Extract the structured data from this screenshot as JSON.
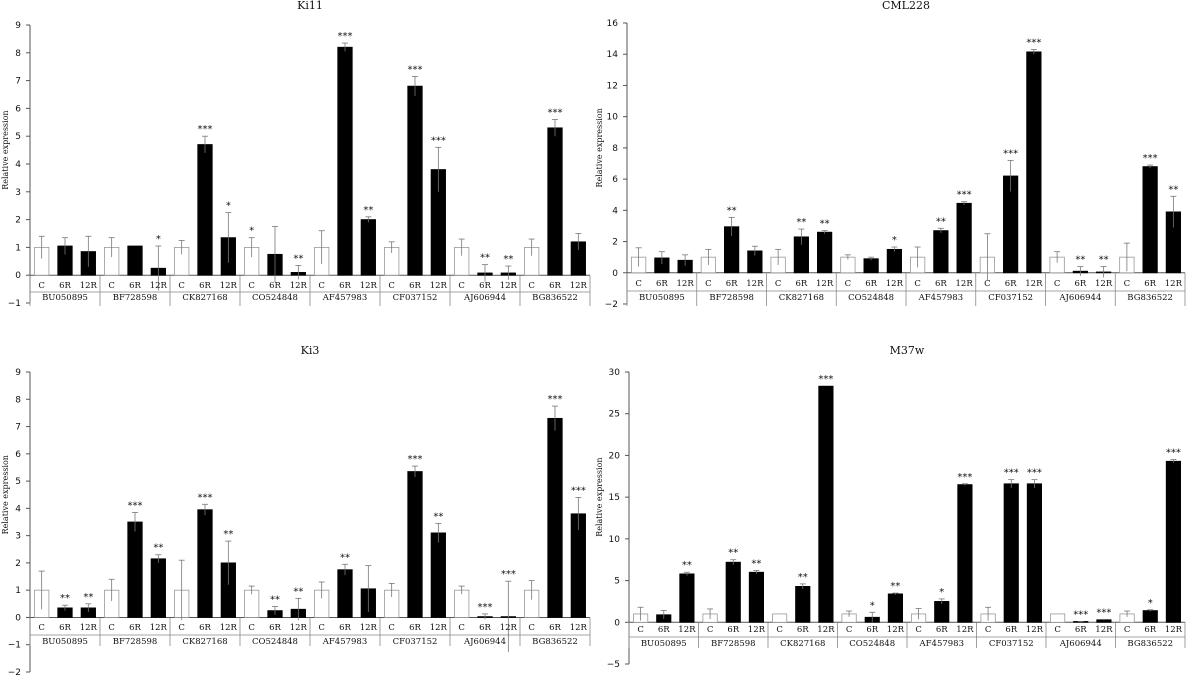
{
  "chart_data": [
    {
      "type": "bar",
      "title": "Ki11",
      "ylabel": "Relative expression",
      "ylim": [
        -1,
        9
      ],
      "yticks": [
        -1,
        0,
        1,
        2,
        3,
        4,
        5,
        6,
        7,
        8,
        9
      ],
      "groups": [
        "BU050895",
        "BF728598",
        "CK827168",
        "CO524848",
        "AF457983",
        "CF037152",
        "AJ606944",
        "BG836522"
      ],
      "treatments": [
        "C",
        "6R",
        "12R"
      ],
      "values": [
        [
          1.0,
          1.05,
          0.85
        ],
        [
          1.0,
          1.05,
          0.25
        ],
        [
          1.0,
          4.7,
          1.35
        ],
        [
          1.0,
          0.75,
          0.1
        ],
        [
          1.0,
          8.2,
          2.0
        ],
        [
          1.0,
          6.8,
          3.8
        ],
        [
          1.0,
          0.08,
          0.08
        ],
        [
          1.0,
          5.3,
          1.2
        ]
      ],
      "errors": [
        [
          0.4,
          0.3,
          0.55
        ],
        [
          0.35,
          0.0,
          0.8
        ],
        [
          0.25,
          0.3,
          0.9
        ],
        [
          0.35,
          1.0,
          0.25
        ],
        [
          0.6,
          0.15,
          0.1
        ],
        [
          0.2,
          0.35,
          0.8
        ],
        [
          0.3,
          0.3,
          0.25
        ],
        [
          0.3,
          0.3,
          0.3
        ]
      ],
      "significance": [
        [
          "",
          "",
          ""
        ],
        [
          "",
          "",
          "*"
        ],
        [
          "",
          "***",
          "*"
        ],
        [
          "*",
          "",
          "**"
        ],
        [
          "",
          "***",
          "**"
        ],
        [
          "",
          "***",
          "***"
        ],
        [
          "",
          "**",
          "**"
        ],
        [
          "",
          "***",
          ""
        ]
      ],
      "grid": false,
      "legend": "none"
    },
    {
      "type": "bar",
      "title": "CML228",
      "ylabel": "Relative expression",
      "ylim": [
        -2,
        16
      ],
      "yticks": [
        -2,
        0,
        2,
        4,
        6,
        8,
        10,
        12,
        14,
        16
      ],
      "groups": [
        "BU050895",
        "BF728598",
        "CK827168",
        "CO524848",
        "AF457983",
        "CF037152",
        "AJ606944",
        "BG836522"
      ],
      "treatments": [
        "C",
        "6R",
        "12R"
      ],
      "values": [
        [
          1.0,
          0.95,
          0.8
        ],
        [
          1.0,
          2.95,
          1.4
        ],
        [
          1.0,
          2.3,
          2.6
        ],
        [
          1.0,
          0.9,
          1.5
        ],
        [
          1.0,
          2.7,
          4.45
        ],
        [
          1.0,
          6.2,
          14.15
        ],
        [
          1.0,
          0.1,
          0.05
        ],
        [
          1.0,
          6.8,
          3.9
        ]
      ],
      "errors": [
        [
          0.6,
          0.4,
          0.35
        ],
        [
          0.5,
          0.6,
          0.3
        ],
        [
          0.5,
          0.5,
          0.1
        ],
        [
          0.15,
          0.1,
          0.15
        ],
        [
          0.65,
          0.15,
          0.1
        ],
        [
          1.5,
          1.0,
          0.15
        ],
        [
          0.35,
          0.3,
          0.35
        ],
        [
          0.9,
          0.1,
          1.0
        ]
      ],
      "significance": [
        [
          "",
          "",
          ""
        ],
        [
          "",
          "**",
          ""
        ],
        [
          "",
          "**",
          "**"
        ],
        [
          "",
          "",
          "*"
        ],
        [
          "",
          "**",
          "***"
        ],
        [
          "",
          "***",
          "***"
        ],
        [
          "",
          "**",
          "**"
        ],
        [
          "",
          "***",
          "**"
        ]
      ],
      "grid": false,
      "legend": "none"
    },
    {
      "type": "bar",
      "title": "Ki3",
      "ylabel": "Relative expression",
      "ylim": [
        -2,
        9
      ],
      "yticks": [
        -2,
        -1,
        0,
        1,
        2,
        3,
        4,
        5,
        6,
        7,
        8,
        9
      ],
      "groups": [
        "BU050895",
        "BF728598",
        "CK827168",
        "CO524848",
        "AF457983",
        "CF037152",
        "AJ606944",
        "BG836522"
      ],
      "treatments": [
        "C",
        "6R",
        "12R"
      ],
      "values": [
        [
          1.0,
          0.35,
          0.35
        ],
        [
          1.0,
          3.5,
          2.15
        ],
        [
          1.0,
          3.95,
          2.0
        ],
        [
          1.0,
          0.25,
          0.3
        ],
        [
          1.0,
          1.75,
          1.05
        ],
        [
          1.0,
          5.35,
          3.1
        ],
        [
          1.0,
          0.03,
          0.03
        ],
        [
          1.0,
          7.3,
          3.8
        ]
      ],
      "errors": [
        [
          0.7,
          0.1,
          0.15
        ],
        [
          0.4,
          0.35,
          0.15
        ],
        [
          1.1,
          0.2,
          0.8
        ],
        [
          0.15,
          0.15,
          0.4
        ],
        [
          0.3,
          0.2,
          0.85
        ],
        [
          0.25,
          0.2,
          0.35
        ],
        [
          0.15,
          0.1,
          1.3
        ],
        [
          0.35,
          0.45,
          0.6
        ]
      ],
      "significance": [
        [
          "",
          "**",
          "**"
        ],
        [
          "",
          "***",
          "**"
        ],
        [
          "",
          "***",
          "**"
        ],
        [
          "",
          "**",
          "**"
        ],
        [
          "",
          "**",
          ""
        ],
        [
          "",
          "***",
          "**"
        ],
        [
          "",
          "***",
          "***"
        ],
        [
          "",
          "***",
          "***"
        ]
      ],
      "grid": false,
      "legend": "none"
    },
    {
      "type": "bar",
      "title": "M37w",
      "ylabel": "Relative expression",
      "ylim": [
        -5,
        30
      ],
      "yticks": [
        -5,
        0,
        5,
        10,
        15,
        20,
        25,
        30
      ],
      "groups": [
        "BU050895",
        "BF728598",
        "CK827168",
        "CO524848",
        "AF457983",
        "CF037152",
        "AJ606944",
        "BG836522"
      ],
      "treatments": [
        "C",
        "6R",
        "12R"
      ],
      "values": [
        [
          1.0,
          0.9,
          5.8
        ],
        [
          1.0,
          7.2,
          6.0
        ],
        [
          1.0,
          4.3,
          28.3
        ],
        [
          1.0,
          0.6,
          3.4
        ],
        [
          1.0,
          2.5,
          16.5
        ],
        [
          1.0,
          16.6,
          16.6
        ],
        [
          1.0,
          0.05,
          0.3
        ],
        [
          1.0,
          1.4,
          19.3
        ]
      ],
      "errors": [
        [
          0.8,
          0.5,
          0.2
        ],
        [
          0.6,
          0.3,
          0.2
        ],
        [
          0.0,
          0.3,
          0.0
        ],
        [
          0.35,
          0.6,
          0.1
        ],
        [
          0.65,
          0.3,
          0.1
        ],
        [
          0.8,
          0.5,
          0.5
        ],
        [
          0.0,
          0.05,
          0.05
        ],
        [
          0.35,
          0.1,
          0.2
        ]
      ],
      "significance": [
        [
          "",
          "",
          "**"
        ],
        [
          "",
          "**",
          "**"
        ],
        [
          "",
          "**",
          "***"
        ],
        [
          "",
          "*",
          "**"
        ],
        [
          "",
          "*",
          "***"
        ],
        [
          "",
          "***",
          "***"
        ],
        [
          "",
          "***",
          "***"
        ],
        [
          "",
          "*",
          "***"
        ]
      ],
      "grid": false,
      "legend": "none"
    }
  ]
}
